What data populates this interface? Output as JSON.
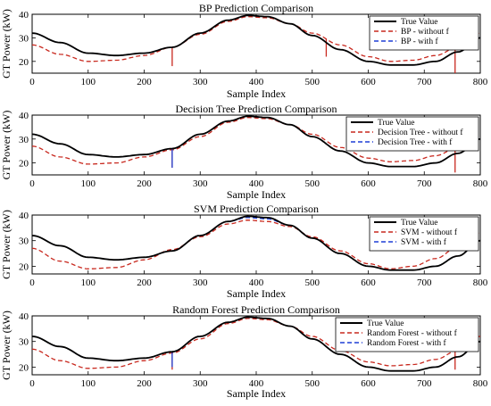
{
  "chart_data": [
    {
      "type": "line",
      "title": "BP Prediction Comparison",
      "xlabel": "Sample Index",
      "ylabel": "",
      "xlim": [
        0,
        800
      ],
      "ylim": [
        15,
        40
      ],
      "xticks": [
        0,
        100,
        200,
        300,
        400,
        500,
        600,
        700,
        800
      ],
      "yticks": [
        20,
        30,
        40
      ],
      "legend_position": "top-right",
      "series": [
        {
          "name": "True Value",
          "color": "#000000",
          "style": "solid",
          "x": [
            0,
            50,
            100,
            150,
            200,
            250,
            300,
            350,
            385,
            420,
            460,
            500,
            550,
            600,
            640,
            680,
            720,
            760,
            800
          ],
          "y": [
            32,
            28,
            23.5,
            22.5,
            23.5,
            26,
            32,
            37.5,
            39.5,
            39,
            36,
            31,
            25,
            20,
            18.5,
            18.5,
            20,
            24,
            30
          ]
        },
        {
          "name": "BP - without f",
          "color": "#c8281e",
          "style": "dashed",
          "x": [
            0,
            50,
            100,
            150,
            200,
            250,
            300,
            350,
            385,
            420,
            460,
            500,
            550,
            600,
            640,
            680,
            720,
            760,
            800
          ],
          "y": [
            27,
            23,
            20,
            20.5,
            22.5,
            26,
            31.5,
            37,
            39,
            38.5,
            36,
            32,
            27,
            22,
            20,
            20.5,
            22.5,
            26,
            32
          ],
          "spikes": [
            [
              250,
              18
            ],
            [
              525,
              22
            ],
            [
              755,
              15
            ]
          ]
        },
        {
          "name": "BP - with f",
          "color": "#1f3fd6",
          "style": "dashed",
          "x": [
            0,
            50,
            100,
            150,
            200,
            250,
            300,
            350,
            385,
            420,
            460,
            500,
            550,
            600,
            640,
            680,
            720,
            760,
            800
          ],
          "y": [
            32,
            28,
            23.5,
            22.5,
            23.5,
            26,
            32,
            37.5,
            39.5,
            39,
            36,
            31,
            25,
            20,
            18.5,
            18.5,
            20,
            24,
            30
          ]
        }
      ]
    },
    {
      "type": "line",
      "title": "Decision Tree Prediction Comparison",
      "xlabel": "Sample Index",
      "ylabel": "",
      "xlim": [
        0,
        800
      ],
      "ylim": [
        15,
        40
      ],
      "xticks": [
        0,
        100,
        200,
        300,
        400,
        500,
        600,
        700,
        800
      ],
      "yticks": [
        20,
        30,
        40
      ],
      "legend_position": "top-right",
      "series": [
        {
          "name": "True Value",
          "color": "#000000",
          "style": "solid",
          "x": [
            0,
            50,
            100,
            150,
            200,
            250,
            300,
            350,
            385,
            420,
            460,
            500,
            550,
            600,
            640,
            680,
            720,
            760,
            800
          ],
          "y": [
            32,
            28,
            23.5,
            22.5,
            23.5,
            26,
            32,
            37.5,
            39.5,
            39,
            36,
            31,
            25,
            20,
            18.5,
            18.5,
            20,
            24,
            30
          ]
        },
        {
          "name": "Decision Tree - without f",
          "color": "#c8281e",
          "style": "dashed",
          "x": [
            0,
            50,
            100,
            150,
            200,
            250,
            300,
            350,
            385,
            420,
            460,
            500,
            550,
            600,
            640,
            680,
            720,
            760,
            800
          ],
          "y": [
            27,
            22.5,
            19.5,
            20,
            22.5,
            25.5,
            31,
            37,
            39,
            38.5,
            36,
            32,
            26.5,
            22,
            20.5,
            21,
            23,
            26.5,
            32
          ],
          "spikes": [
            [
              250,
              18
            ],
            [
              755,
              16
            ]
          ]
        },
        {
          "name": "Decision Tree - with f",
          "color": "#1f3fd6",
          "style": "dashed",
          "x": [
            0,
            50,
            100,
            150,
            200,
            250,
            300,
            350,
            385,
            420,
            460,
            500,
            550,
            600,
            640,
            680,
            720,
            760,
            800
          ],
          "y": [
            32,
            28,
            23.5,
            22.5,
            23.5,
            26,
            32,
            37.5,
            39.5,
            39,
            36,
            31,
            25,
            20,
            18.5,
            18.5,
            20,
            24,
            30
          ],
          "spikes": [
            [
              250,
              18
            ]
          ]
        }
      ]
    },
    {
      "type": "line",
      "title": "SVM Prediction Comparison",
      "xlabel": "Sample Index",
      "ylabel": "GT Power (kW)",
      "xlim": [
        0,
        800
      ],
      "ylim": [
        17,
        40
      ],
      "xticks": [
        0,
        100,
        200,
        300,
        400,
        500,
        600,
        700,
        800
      ],
      "yticks": [
        20,
        30,
        40
      ],
      "legend_position": "top-right",
      "series": [
        {
          "name": "True Value",
          "color": "#000000",
          "style": "solid",
          "x": [
            0,
            50,
            100,
            150,
            200,
            250,
            300,
            350,
            385,
            420,
            460,
            500,
            550,
            600,
            640,
            680,
            720,
            760,
            800
          ],
          "y": [
            32,
            28,
            23.5,
            22.5,
            23.5,
            26,
            32,
            37.5,
            39.5,
            39,
            36,
            31,
            25,
            20,
            18.5,
            18.5,
            20,
            24,
            30
          ]
        },
        {
          "name": "SVM - without f",
          "color": "#c8281e",
          "style": "dashed",
          "x": [
            0,
            50,
            100,
            150,
            200,
            250,
            300,
            350,
            385,
            420,
            460,
            500,
            550,
            600,
            640,
            680,
            720,
            760,
            800
          ],
          "y": [
            27,
            22,
            19,
            19.5,
            22.5,
            26.5,
            31.5,
            36.5,
            38,
            37.5,
            35.5,
            31.5,
            26,
            21,
            19,
            20,
            23,
            27.5,
            33
          ]
        },
        {
          "name": "SVM - with f",
          "color": "#1f3fd6",
          "style": "dashed",
          "x": [
            0,
            50,
            100,
            150,
            200,
            250,
            300,
            350,
            385,
            420,
            460,
            500,
            550,
            600,
            640,
            680,
            720,
            760,
            800
          ],
          "y": [
            32,
            28,
            23.5,
            22.5,
            23.5,
            26,
            32,
            37.5,
            39,
            38.5,
            36,
            31,
            25,
            20,
            18.5,
            18.5,
            20,
            24,
            30
          ]
        }
      ]
    },
    {
      "type": "line",
      "title": "Random Forest Prediction Comparison",
      "xlabel": "Sample Index",
      "ylabel": "",
      "xlim": [
        0,
        800
      ],
      "ylim": [
        17,
        40
      ],
      "xticks": [
        0,
        100,
        200,
        300,
        400,
        500,
        600,
        700,
        800
      ],
      "yticks": [
        20,
        30,
        40
      ],
      "legend_position": "top-right",
      "series": [
        {
          "name": "True Value",
          "color": "#000000",
          "style": "solid",
          "x": [
            0,
            50,
            100,
            150,
            200,
            250,
            300,
            350,
            385,
            420,
            460,
            500,
            550,
            600,
            640,
            680,
            720,
            760,
            800
          ],
          "y": [
            32,
            28,
            23.5,
            22.5,
            23.5,
            26,
            32,
            37.5,
            39.5,
            39,
            36,
            31,
            25,
            20,
            18.5,
            18.5,
            20,
            24,
            30
          ]
        },
        {
          "name": "Random Forest - without f",
          "color": "#c8281e",
          "style": "dashed",
          "x": [
            0,
            50,
            100,
            150,
            200,
            250,
            300,
            350,
            385,
            420,
            460,
            500,
            550,
            600,
            640,
            680,
            720,
            760,
            800
          ],
          "y": [
            27,
            22.5,
            19.5,
            20,
            22.5,
            25.5,
            31,
            37,
            39,
            38.5,
            36,
            32,
            26.5,
            22,
            20.5,
            21,
            23,
            26.5,
            32
          ],
          "spikes": [
            [
              250,
              19
            ],
            [
              755,
              19
            ]
          ]
        },
        {
          "name": "Random Forest - with f",
          "color": "#1f3fd6",
          "style": "dashed",
          "x": [
            0,
            50,
            100,
            150,
            200,
            250,
            300,
            350,
            385,
            420,
            460,
            500,
            550,
            600,
            640,
            680,
            720,
            760,
            800
          ],
          "y": [
            32,
            28,
            23.5,
            22.5,
            23.5,
            26,
            32,
            37.5,
            39.5,
            39,
            36,
            31,
            25,
            20,
            18.5,
            18.5,
            20,
            24,
            30
          ],
          "spikes": [
            [
              250,
              20
            ]
          ]
        }
      ]
    }
  ],
  "figure": {
    "ylabel": "GT Power (kW)"
  }
}
